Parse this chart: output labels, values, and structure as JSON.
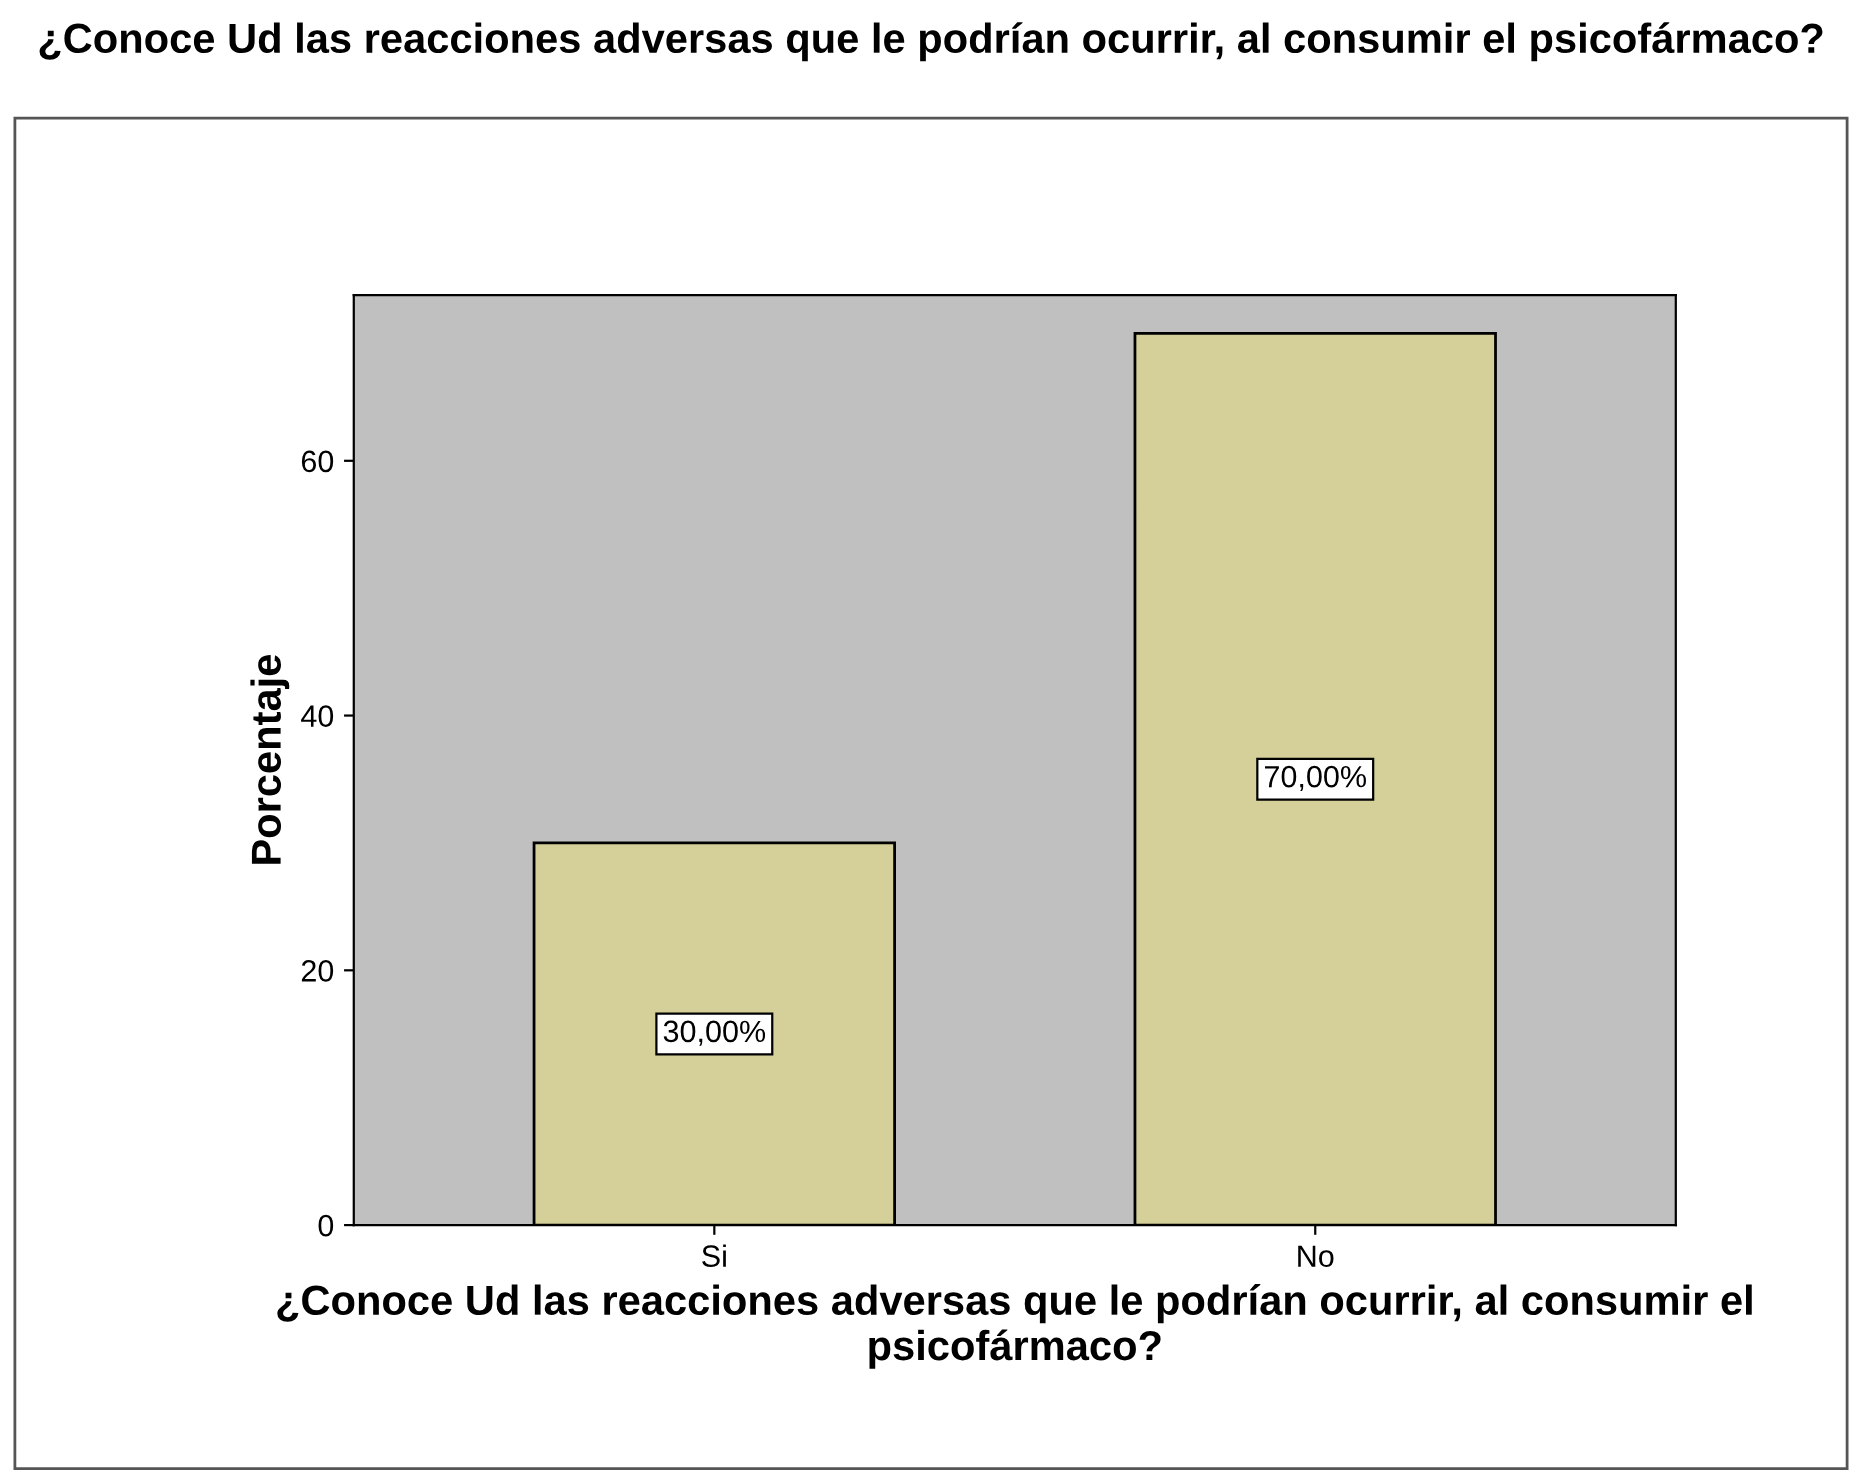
{
  "chart_data": {
    "type": "bar",
    "title": "¿Conoce Ud las reacciones adversas que le podrían ocurrir, al consumir el psicofármaco?",
    "xlabel": "¿Conoce Ud las reacciones adversas que le podrían ocurrir, al consumir el psicofármaco?",
    "ylabel": "Porcentaje",
    "categories": [
      "Si",
      "No"
    ],
    "values": [
      30,
      70
    ],
    "value_labels": [
      "30,00%",
      "70,00%"
    ],
    "color": "#d5d099",
    "ylim": [
      0,
      73
    ],
    "yticks": [
      0,
      20,
      40,
      60
    ],
    "grid": false
  }
}
